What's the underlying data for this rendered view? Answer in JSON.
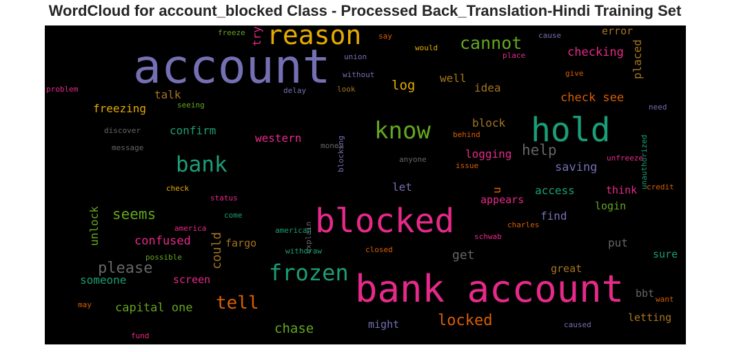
{
  "chart_data": {
    "type": "wordcloud",
    "title": "WordCloud for account_blocked Class - Processed Back_Translation-Hindi Training Set",
    "background": "#000000",
    "palette": "Dark2",
    "words": [
      {
        "text": "account",
        "color": "#7570b3"
      },
      {
        "text": "bank account",
        "color": "#e7298a"
      },
      {
        "text": "blocked",
        "color": "#e7298a"
      },
      {
        "text": "hold",
        "color": "#1b9e77"
      },
      {
        "text": "reason",
        "color": "#e6ab02"
      },
      {
        "text": "know",
        "color": "#66a61e"
      },
      {
        "text": "frozen",
        "color": "#1b9e77"
      },
      {
        "text": "bank",
        "color": "#1b9e77"
      },
      {
        "text": "cannot",
        "color": "#66a61e"
      },
      {
        "text": "tell",
        "color": "#d95f02"
      },
      {
        "text": "locked",
        "color": "#d95f02"
      },
      {
        "text": "please",
        "color": "#666666"
      },
      {
        "text": "seems",
        "color": "#66a61e"
      },
      {
        "text": "help",
        "color": "#666666"
      },
      {
        "text": "chase",
        "color": "#66a61e"
      },
      {
        "text": "check see",
        "color": "#d95f02"
      },
      {
        "text": "checking",
        "color": "#e7298a"
      },
      {
        "text": "log",
        "color": "#e6ab02"
      },
      {
        "text": "could",
        "color": "#a6761d"
      },
      {
        "text": "error",
        "color": "#a6761d"
      },
      {
        "text": "placed",
        "color": "#a6761d"
      },
      {
        "text": "try",
        "color": "#e7298a"
      },
      {
        "text": "capital one",
        "color": "#66a61e"
      },
      {
        "text": "confused",
        "color": "#e7298a"
      },
      {
        "text": "someone",
        "color": "#1b9e77"
      },
      {
        "text": "get",
        "color": "#666666"
      },
      {
        "text": "saving",
        "color": "#7570b3"
      },
      {
        "text": "logging",
        "color": "#e7298a"
      },
      {
        "text": "confirm",
        "color": "#1b9e77"
      },
      {
        "text": "western",
        "color": "#e7298a"
      },
      {
        "text": "freezing",
        "color": "#e6ab02"
      },
      {
        "text": "well",
        "color": "#a6761d"
      },
      {
        "text": "idea",
        "color": "#a6761d"
      },
      {
        "text": "talk",
        "color": "#a6761d"
      },
      {
        "text": "block",
        "color": "#a6761d"
      },
      {
        "text": "access",
        "color": "#1b9e77"
      },
      {
        "text": "think",
        "color": "#e7298a"
      },
      {
        "text": "login",
        "color": "#66a61e"
      },
      {
        "text": "find",
        "color": "#7570b3"
      },
      {
        "text": "appears",
        "color": "#e7298a"
      },
      {
        "text": "let",
        "color": "#7570b3"
      },
      {
        "text": "u",
        "color": "#d95f02"
      },
      {
        "text": "put",
        "color": "#666666"
      },
      {
        "text": "sure",
        "color": "#1b9e77"
      },
      {
        "text": "great",
        "color": "#a6761d"
      },
      {
        "text": "screen",
        "color": "#e7298a"
      },
      {
        "text": "fargo",
        "color": "#a6761d"
      },
      {
        "text": "unlock",
        "color": "#66a61e"
      },
      {
        "text": "might",
        "color": "#7570b3"
      },
      {
        "text": "letting",
        "color": "#a6761d"
      },
      {
        "text": "bbt",
        "color": "#666666"
      },
      {
        "text": "unauthorized",
        "color": "#1b9e77"
      },
      {
        "text": "freeze",
        "color": "#66a61e"
      },
      {
        "text": "say",
        "color": "#d95f02"
      },
      {
        "text": "cause",
        "color": "#7570b3"
      },
      {
        "text": "would",
        "color": "#e6ab02"
      },
      {
        "text": "union",
        "color": "#7570b3"
      },
      {
        "text": "place",
        "color": "#e7298a"
      },
      {
        "text": "without",
        "color": "#7570b3"
      },
      {
        "text": "give",
        "color": "#d95f02"
      },
      {
        "text": "problem",
        "color": "#e7298a"
      },
      {
        "text": "delay",
        "color": "#7570b3"
      },
      {
        "text": "look",
        "color": "#a6761d"
      },
      {
        "text": "seeing",
        "color": "#66a61e"
      },
      {
        "text": "need",
        "color": "#7570b3"
      },
      {
        "text": "discover",
        "color": "#666666"
      },
      {
        "text": "blocking",
        "color": "#7570b3"
      },
      {
        "text": "behind",
        "color": "#d95f02"
      },
      {
        "text": "message",
        "color": "#666666"
      },
      {
        "text": "money",
        "color": "#666666"
      },
      {
        "text": "unfreeze",
        "color": "#e7298a"
      },
      {
        "text": "anyone",
        "color": "#666666"
      },
      {
        "text": "issue",
        "color": "#d95f02"
      },
      {
        "text": "check",
        "color": "#e6ab02"
      },
      {
        "text": "credit",
        "color": "#d95f02"
      },
      {
        "text": "status",
        "color": "#e7298a"
      },
      {
        "text": "explain",
        "color": "#666666"
      },
      {
        "text": "come",
        "color": "#1b9e77"
      },
      {
        "text": "america",
        "color": "#e7298a"
      },
      {
        "text": "american",
        "color": "#1b9e77"
      },
      {
        "text": "charles",
        "color": "#d95f02"
      },
      {
        "text": "withdraw",
        "color": "#1b9e77"
      },
      {
        "text": "closed",
        "color": "#d95f02"
      },
      {
        "text": "schwab",
        "color": "#e7298a"
      },
      {
        "text": "possible",
        "color": "#66a61e"
      },
      {
        "text": "want",
        "color": "#d95f02"
      },
      {
        "text": "may",
        "color": "#d95f02"
      },
      {
        "text": "caused",
        "color": "#7570b3"
      },
      {
        "text": "fund",
        "color": "#e7298a"
      }
    ]
  }
}
